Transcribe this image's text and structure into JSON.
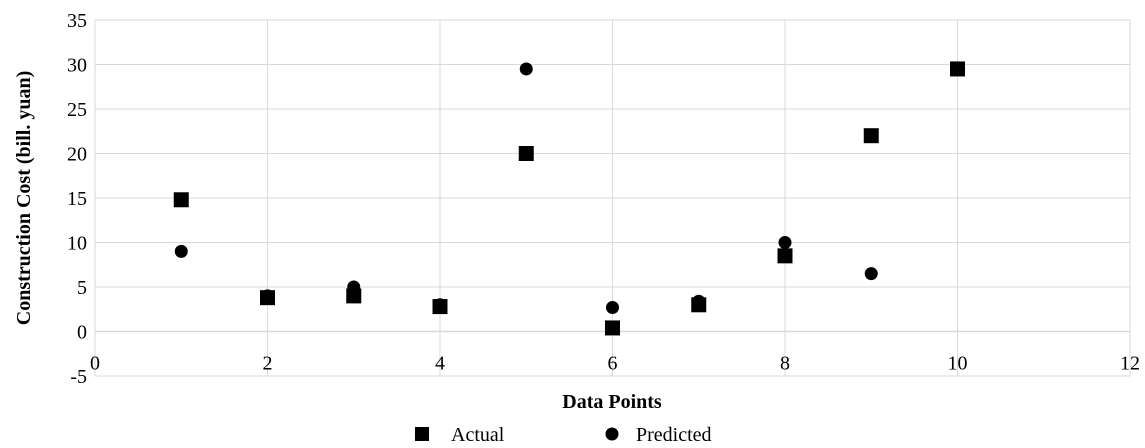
{
  "chart_data": {
    "type": "scatter",
    "xlabel": "Data Points",
    "ylabel": "Construction Cost (bill. yuan)",
    "xlim": [
      0,
      12
    ],
    "ylim": [
      -5,
      35
    ],
    "xticks": [
      0,
      2,
      4,
      6,
      8,
      10,
      12
    ],
    "yticks": [
      -5,
      0,
      5,
      10,
      15,
      20,
      25,
      30,
      35
    ],
    "grid": true,
    "legend_position": "bottom",
    "series": [
      {
        "name": "Actual",
        "marker": "square",
        "color": "#000000",
        "x": [
          1,
          2,
          3,
          4,
          5,
          6,
          7,
          8,
          9,
          10
        ],
        "y": [
          14.8,
          3.8,
          4.0,
          2.8,
          20.0,
          0.4,
          3.0,
          8.5,
          22.0,
          29.5
        ]
      },
      {
        "name": "Predicted",
        "marker": "circle",
        "color": "#000000",
        "x": [
          1,
          2,
          3,
          4,
          5,
          6,
          7,
          8,
          9,
          10
        ],
        "y": [
          9.0,
          4.0,
          5.0,
          3.0,
          29.5,
          2.7,
          3.4,
          10.0,
          6.5,
          29.5
        ]
      }
    ]
  }
}
